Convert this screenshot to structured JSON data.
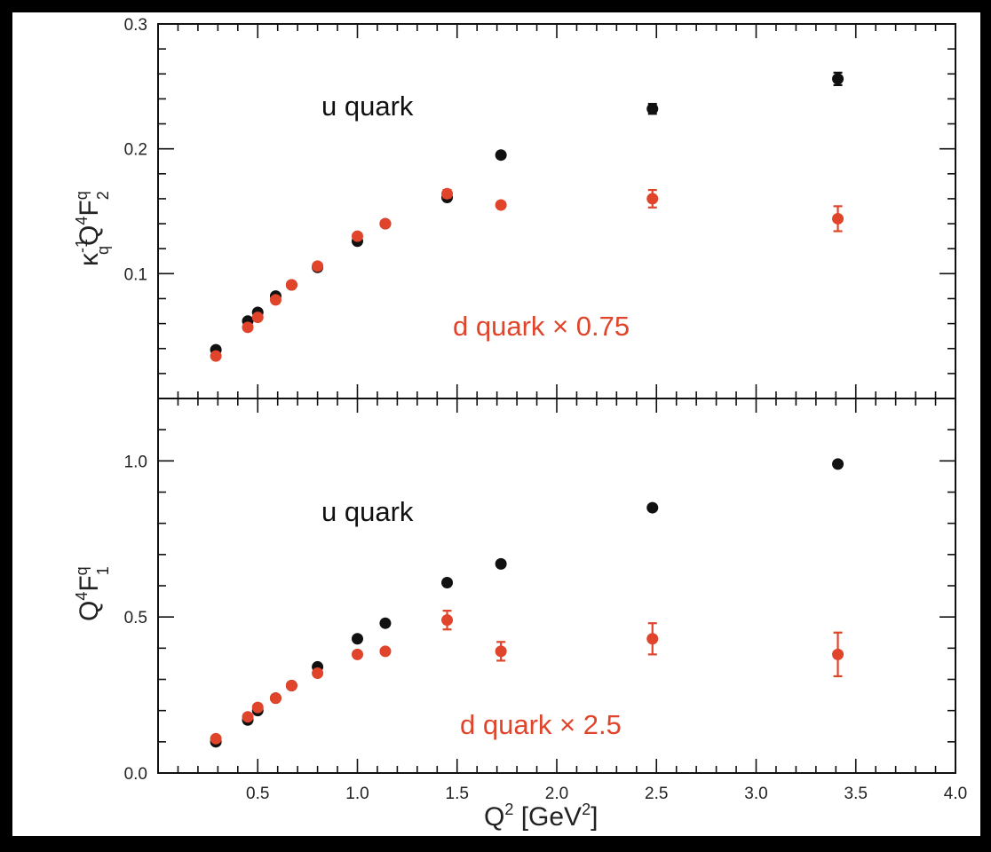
{
  "chart_data": [
    {
      "type": "scatter",
      "panel": "top",
      "xlim": [
        0.0,
        4.0
      ],
      "ylim": [
        0.0,
        0.3
      ],
      "x_ticks": [
        "0.5",
        "1.0",
        "1.5",
        "2.0",
        "2.5",
        "3.0",
        "3.5",
        "4.0"
      ],
      "y_ticks": [
        "0.3",
        "0.2",
        "0.1"
      ],
      "ylabel": {
        "main": "κ",
        "sub": "q",
        "sup": "-1",
        "rest_main": "Q",
        "rest_sup": "4",
        "f_main": "F",
        "f_sup": "q",
        "f_sub": "2"
      },
      "annotations": [
        {
          "text": "u quark",
          "color": "#111111"
        },
        {
          "text": "d quark × 0.75",
          "color": "#e0442a"
        }
      ],
      "series": [
        {
          "name": "u quark",
          "color": "#111111",
          "points": [
            {
              "x": 0.29,
              "y": 0.039,
              "err": 0.002
            },
            {
              "x": 0.45,
              "y": 0.062,
              "err": 0.002
            },
            {
              "x": 0.5,
              "y": 0.069,
              "err": 0.002
            },
            {
              "x": 0.59,
              "y": 0.082,
              "err": 0.002
            },
            {
              "x": 0.67,
              "y": 0.091,
              "err": 0.002
            },
            {
              "x": 0.8,
              "y": 0.105,
              "err": 0.002
            },
            {
              "x": 1.0,
              "y": 0.126,
              "err": 0.002
            },
            {
              "x": 1.14,
              "y": 0.14,
              "err": 0.002
            },
            {
              "x": 1.45,
              "y": 0.161,
              "err": 0.002
            },
            {
              "x": 1.72,
              "y": 0.195,
              "err": 0.002
            },
            {
              "x": 2.48,
              "y": 0.232,
              "err": 0.004
            },
            {
              "x": 3.41,
              "y": 0.256,
              "err": 0.005
            }
          ]
        },
        {
          "name": "d quark × 0.75",
          "color": "#e0442a",
          "points": [
            {
              "x": 0.29,
              "y": 0.034,
              "err": 0.002
            },
            {
              "x": 0.45,
              "y": 0.057,
              "err": 0.002
            },
            {
              "x": 0.5,
              "y": 0.065,
              "err": 0.002
            },
            {
              "x": 0.59,
              "y": 0.079,
              "err": 0.002
            },
            {
              "x": 0.67,
              "y": 0.091,
              "err": 0.002
            },
            {
              "x": 0.8,
              "y": 0.106,
              "err": 0.002
            },
            {
              "x": 1.0,
              "y": 0.13,
              "err": 0.002
            },
            {
              "x": 1.14,
              "y": 0.14,
              "err": 0.002
            },
            {
              "x": 1.45,
              "y": 0.164,
              "err": 0.003
            },
            {
              "x": 1.72,
              "y": 0.155,
              "err": 0.002
            },
            {
              "x": 2.48,
              "y": 0.16,
              "err": 0.007
            },
            {
              "x": 3.41,
              "y": 0.144,
              "err": 0.01
            }
          ]
        }
      ]
    },
    {
      "type": "scatter",
      "panel": "bottom",
      "xlim": [
        0.0,
        4.0
      ],
      "ylim": [
        0.0,
        1.2
      ],
      "x_ticks": [
        "0.5",
        "1.0",
        "1.5",
        "2.0",
        "2.5",
        "3.0",
        "3.5",
        "4.0"
      ],
      "y_ticks": [
        "1.0",
        "0.5",
        "0.0"
      ],
      "ylabel": {
        "main": "Q",
        "sup": "4",
        "f_main": "F",
        "f_sup": "q",
        "f_sub": "1"
      },
      "xlabel": {
        "main": "Q",
        "sup": "2",
        "rest": " [GeV",
        "rest_sup": "2",
        "close": "]"
      },
      "annotations": [
        {
          "text": "u quark",
          "color": "#111111"
        },
        {
          "text": "d quark × 2.5",
          "color": "#e0442a"
        }
      ],
      "series": [
        {
          "name": "u quark",
          "color": "#111111",
          "points": [
            {
              "x": 0.29,
              "y": 0.1,
              "err": 0.01
            },
            {
              "x": 0.45,
              "y": 0.17,
              "err": 0.01
            },
            {
              "x": 0.5,
              "y": 0.2,
              "err": 0.01
            },
            {
              "x": 0.59,
              "y": 0.24,
              "err": 0.01
            },
            {
              "x": 0.67,
              "y": 0.28,
              "err": 0.01
            },
            {
              "x": 0.8,
              "y": 0.34,
              "err": 0.01
            },
            {
              "x": 1.0,
              "y": 0.43,
              "err": 0.01
            },
            {
              "x": 1.14,
              "y": 0.48,
              "err": 0.01
            },
            {
              "x": 1.45,
              "y": 0.61,
              "err": 0.01
            },
            {
              "x": 1.72,
              "y": 0.67,
              "err": 0.01
            },
            {
              "x": 2.48,
              "y": 0.85,
              "err": 0.01
            },
            {
              "x": 3.41,
              "y": 0.99,
              "err": 0.01
            }
          ]
        },
        {
          "name": "d quark × 2.5",
          "color": "#e0442a",
          "points": [
            {
              "x": 0.29,
              "y": 0.11,
              "err": 0.01
            },
            {
              "x": 0.45,
              "y": 0.18,
              "err": 0.01
            },
            {
              "x": 0.5,
              "y": 0.21,
              "err": 0.01
            },
            {
              "x": 0.59,
              "y": 0.24,
              "err": 0.01
            },
            {
              "x": 0.67,
              "y": 0.28,
              "err": 0.01
            },
            {
              "x": 0.8,
              "y": 0.32,
              "err": 0.01
            },
            {
              "x": 1.0,
              "y": 0.38,
              "err": 0.01
            },
            {
              "x": 1.14,
              "y": 0.39,
              "err": 0.01
            },
            {
              "x": 1.45,
              "y": 0.49,
              "err": 0.03
            },
            {
              "x": 1.72,
              "y": 0.39,
              "err": 0.03
            },
            {
              "x": 2.48,
              "y": 0.43,
              "err": 0.05
            },
            {
              "x": 3.41,
              "y": 0.38,
              "err": 0.07
            }
          ]
        }
      ]
    }
  ]
}
